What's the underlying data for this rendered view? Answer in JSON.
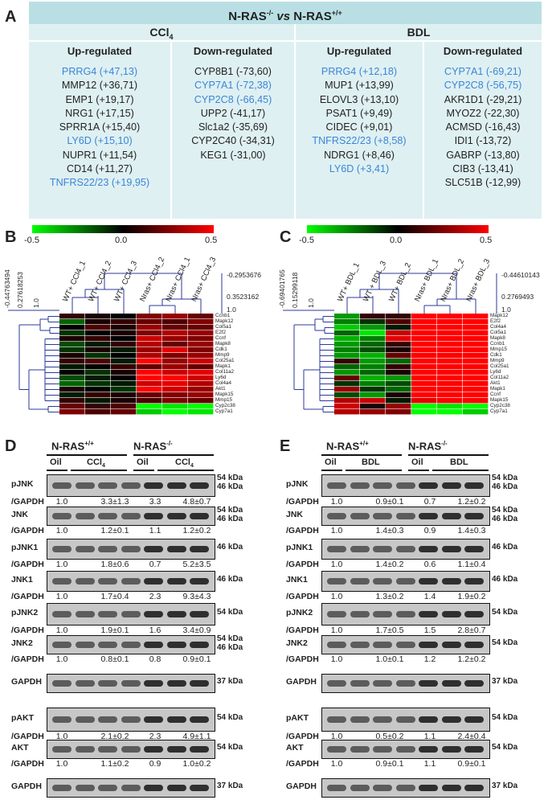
{
  "panels": {
    "A": "A",
    "B": "B",
    "C": "C",
    "D": "D",
    "E": "E"
  },
  "tableA": {
    "header_main": "N-RAS",
    "header_sup1": "-/-",
    "header_vs": " vs ",
    "header_main2": "N-RAS",
    "header_sup2": "+/+",
    "groups": [
      {
        "name_main": "CCl",
        "name_sub": "4",
        "up_title": "Up-regulated",
        "down_title": "Down-regulated",
        "up": [
          {
            "text": "PRRG4 (+47,13)",
            "hl": true
          },
          {
            "text": "MMP12 (+36,71)",
            "hl": false
          },
          {
            "text": "EMP1 (+19,17)",
            "hl": false
          },
          {
            "text": "NRG1 (+17,15)",
            "hl": false
          },
          {
            "text": "SPRR1A (+15,40)",
            "hl": false
          },
          {
            "text": "LY6D (+15,10)",
            "hl": true
          },
          {
            "text": "NUPR1 (+11,54)",
            "hl": false
          },
          {
            "text": "CD14  (+11,27)",
            "hl": false
          },
          {
            "text": "TNFRS22/23 (+19,95)",
            "hl": true
          }
        ],
        "down": [
          {
            "text": "CYP8B1 (-73,60)",
            "hl": false
          },
          {
            "text": "CYP7A1 (-72,38)",
            "hl": true
          },
          {
            "text": "CYP2C8 (-66,45)",
            "hl": true
          },
          {
            "text": "UPP2 (-41,17)",
            "hl": false
          },
          {
            "text": "Slc1a2 (-35,69)",
            "hl": false
          },
          {
            "text": "CYP2C40 (-34,31)",
            "hl": false
          },
          {
            "text": "KEG1 (-31,00)",
            "hl": false
          }
        ]
      },
      {
        "name_main": "BDL",
        "name_sub": "",
        "up_title": "Up-regulated",
        "down_title": "Down-regulated",
        "up": [
          {
            "text": "PRRG4 (+12,18)",
            "hl": true
          },
          {
            "text": "MUP1 (+13,99)",
            "hl": false
          },
          {
            "text": "ELOVL3 (+13,10)",
            "hl": false
          },
          {
            "text": "PSAT1 (+9,49)",
            "hl": false
          },
          {
            "text": "CIDEC (+9,01)",
            "hl": false
          },
          {
            "text": "TNFRS22/23 (+8,58)",
            "hl": true
          },
          {
            "text": "NDRG1 (+8,46)",
            "hl": false
          },
          {
            "text": "LY6D (+3,41)",
            "hl": true
          }
        ],
        "down": [
          {
            "text": "CYP7A1 (-69,21)",
            "hl": true
          },
          {
            "text": "CYP2C8 (-56,75)",
            "hl": true
          },
          {
            "text": "AKR1D1 (-29,21)",
            "hl": false
          },
          {
            "text": "MYOZ2 (-22,30)",
            "hl": false
          },
          {
            "text": "ACMSD (-16,43)",
            "hl": false
          },
          {
            "text": "IDI1 (-13,72)",
            "hl": false
          },
          {
            "text": "GABRP (-13,80)",
            "hl": false
          },
          {
            "text": "CIB3 (-13,41)",
            "hl": false
          },
          {
            "text": "SLC51B (-12,99)",
            "hl": false
          }
        ]
      }
    ]
  },
  "heatmapB": {
    "scale_min": "-0.5",
    "scale_mid": "0.0",
    "scale_max": "0.5",
    "samples": [
      "WT+ CCl4_1",
      "WT+ CCl4_2",
      "WT+ CCl4_3",
      "Nras+ CCl4_2",
      "Nras+ CCl4_1",
      "Nras+ CCl4_3"
    ],
    "genes": [
      "Ccnb1",
      "Mapk12",
      "Col5a1",
      "E2f2",
      "Ccnf",
      "Mapk8",
      "Cdk1",
      "Mmp9",
      "Col25a1",
      "Mapk1",
      "Col11a2",
      "Ly6d",
      "Col4a4",
      "Akt1",
      "Mapk15",
      "Mmp15",
      "Cyp2c38",
      "Cyp7a1"
    ],
    "tree_top": "-0.2953676",
    "tree_mid": "0.3523162",
    "tree_bot": "1.0",
    "tree_left": "-0.44763494",
    "tree_left2": "0.27618253",
    "tree_left3": "1.0",
    "values": [
      [
        0.1,
        0.05,
        0.0,
        0.25,
        0.3,
        0.2
      ],
      [
        -0.2,
        0.05,
        0.1,
        0.2,
        0.15,
        0.25
      ],
      [
        0.0,
        0.15,
        0.05,
        0.3,
        0.2,
        0.2
      ],
      [
        -0.1,
        0.0,
        0.05,
        0.25,
        0.35,
        0.3
      ],
      [
        0.05,
        0.1,
        0.0,
        0.4,
        0.3,
        0.25
      ],
      [
        -0.15,
        -0.05,
        0.1,
        0.35,
        0.2,
        0.3
      ],
      [
        -0.1,
        0.05,
        -0.05,
        0.3,
        0.45,
        0.25
      ],
      [
        0.05,
        -0.1,
        0.0,
        0.35,
        0.25,
        0.3
      ],
      [
        0.1,
        0.15,
        -0.05,
        0.5,
        0.3,
        0.4
      ],
      [
        -0.05,
        0.0,
        0.1,
        0.2,
        0.3,
        0.2
      ],
      [
        0.0,
        -0.1,
        0.05,
        0.5,
        0.4,
        0.45
      ],
      [
        -0.15,
        -0.05,
        0.0,
        0.5,
        0.5,
        0.4
      ],
      [
        -0.2,
        -0.1,
        -0.05,
        0.4,
        0.45,
        0.35
      ],
      [
        0.05,
        0.0,
        -0.1,
        0.5,
        0.4,
        0.3
      ],
      [
        -0.05,
        0.1,
        0.05,
        0.2,
        0.25,
        0.3
      ],
      [
        0.1,
        -0.05,
        0.05,
        0.15,
        0.25,
        0.2
      ],
      [
        0.2,
        0.1,
        0.15,
        -0.5,
        -0.45,
        -0.5
      ],
      [
        0.25,
        0.15,
        0.2,
        -0.4,
        -0.5,
        -0.45
      ]
    ]
  },
  "heatmapC": {
    "scale_min": "-0.5",
    "scale_mid": "0.0",
    "scale_max": "0.5",
    "samples": [
      "WT+ BDL_1",
      "WT + BDL_3",
      "WT+ BDL_2",
      "Nras+ BDL_1",
      "Nras+ BDL_2",
      "Nras+ BDL_3"
    ],
    "genes": [
      "Mapk12",
      "E2f2",
      "Col4a4",
      "Col5a1",
      "Mapk8",
      "Ccnb1",
      "Mmp15",
      "Cdk1",
      "Mmp9",
      "Col25a1",
      "Ly6d",
      "Col11a2",
      "Akt1",
      "Mapk1",
      "Ccnf",
      "Mapk15",
      "Cyp2c38",
      "Cyp7a1"
    ],
    "tree_top": "-0.44610143",
    "tree_mid": "0.2769493",
    "tree_bot": "1.0",
    "tree_left": "-0.69401765",
    "tree_left2": "0.15299118",
    "tree_left3": "1.0",
    "values": [
      [
        -0.3,
        0.1,
        0.1,
        0.5,
        0.5,
        0.5
      ],
      [
        -0.25,
        -0.1,
        0.15,
        0.5,
        0.5,
        0.5
      ],
      [
        -0.4,
        -0.3,
        -0.05,
        0.5,
        0.5,
        0.5
      ],
      [
        -0.2,
        -0.45,
        0.4,
        0.5,
        0.5,
        0.5
      ],
      [
        -0.35,
        -0.25,
        0.45,
        0.5,
        0.5,
        0.5
      ],
      [
        -0.3,
        -0.2,
        0.1,
        0.5,
        0.5,
        0.5
      ],
      [
        -0.25,
        -0.15,
        0.05,
        0.5,
        0.5,
        0.5
      ],
      [
        -0.3,
        -0.35,
        0.2,
        0.5,
        0.5,
        0.5
      ],
      [
        0.1,
        -0.3,
        -0.2,
        0.5,
        0.5,
        0.5
      ],
      [
        -0.2,
        -0.25,
        0.1,
        0.5,
        0.5,
        0.5
      ],
      [
        -0.3,
        -0.2,
        0.05,
        0.5,
        0.5,
        0.5
      ],
      [
        0.2,
        -0.35,
        -0.3,
        0.5,
        0.5,
        0.5
      ],
      [
        -0.1,
        -0.25,
        -0.15,
        0.5,
        0.5,
        0.5
      ],
      [
        0.3,
        -0.1,
        -0.2,
        0.5,
        0.5,
        0.5
      ],
      [
        -0.15,
        -0.3,
        0.05,
        0.5,
        0.5,
        0.5
      ],
      [
        0.35,
        0.4,
        -0.05,
        0.45,
        0.5,
        0.5
      ],
      [
        0.4,
        0.05,
        0.3,
        -0.5,
        -0.45,
        -0.5
      ],
      [
        0.35,
        0.3,
        0.25,
        -0.5,
        -0.5,
        -0.4
      ]
    ]
  },
  "blotD": {
    "cond_left": "N-RAS",
    "cond_left_sup": "+/+",
    "cond_right": "N-RAS",
    "cond_right_sup": "-/-",
    "oil": "Oil",
    "treat": "CCl",
    "treat_sub": "4",
    "rows": [
      {
        "name": "pJNK",
        "kda": [
          "54 kDa",
          "46 kDa"
        ],
        "quant": [
          "1.0",
          "3.3±1.3",
          "3.3",
          "4.8±0.7"
        ]
      },
      {
        "name": "JNK",
        "kda": [
          "54 kDa",
          "46 kDa"
        ],
        "quant": [
          "1.0",
          "1.2±0.1",
          "1.1",
          "1.2±0.2"
        ]
      },
      {
        "name": "pJNK1",
        "kda": [
          "46 kDa"
        ],
        "quant": [
          "1.0",
          "1.8±0.6",
          "0.7",
          "5.2±3.5"
        ]
      },
      {
        "name": "JNK1",
        "kda": [
          "46 kDa"
        ],
        "quant": [
          "1.0",
          "1.7±0.4",
          "2.3",
          "9.3±4.3"
        ]
      },
      {
        "name": "pJNK2",
        "kda": [
          "54 kDa"
        ],
        "quant": [
          "1.0",
          "1.9±0.1",
          "1.6",
          "3.4±0.9"
        ]
      },
      {
        "name": "JNK2",
        "kda": [
          "54 kDa",
          "46 kDa"
        ],
        "quant": [
          "1.0",
          "0.8±0.1",
          "0.8",
          "0.9±0.1"
        ]
      },
      {
        "name": "GAPDH",
        "kda": [
          "37 kDa"
        ],
        "quant": []
      },
      {
        "name": "pAKT",
        "kda": [
          "54 kDa"
        ],
        "quant": [
          "1.0",
          "2.1±0.2",
          "2.3",
          "4.9±1.1"
        ]
      },
      {
        "name": "AKT",
        "kda": [
          "54 kDa"
        ],
        "quant": [
          "1.0",
          "1.1±0.2",
          "0.9",
          "1.0±0.2"
        ]
      },
      {
        "name": "GAPDH",
        "kda": [
          "37 kDa"
        ],
        "quant": []
      }
    ],
    "gapdh_label": "/GAPDH"
  },
  "blotE": {
    "cond_left": "N-RAS",
    "cond_left_sup": "+/+",
    "cond_right": "N-RAS",
    "cond_right_sup": "-/-",
    "oil": "Oil",
    "treat": "BDL",
    "treat_sub": "",
    "rows": [
      {
        "name": "pJNK",
        "kda": [
          "54 kDa",
          "46 kDa"
        ],
        "quant": [
          "1.0",
          "0.9±0.1",
          "0.7",
          "1.2±0.2"
        ]
      },
      {
        "name": "JNK",
        "kda": [
          "54 kDa",
          "46 kDa"
        ],
        "quant": [
          "1.0",
          "1.4±0.3",
          "0.9",
          "1.4±0.3"
        ]
      },
      {
        "name": "pJNK1",
        "kda": [
          "46 kDa"
        ],
        "quant": [
          "1.0",
          "1.4±0.2",
          "0.6",
          "1.1±0.4"
        ]
      },
      {
        "name": "JNK1",
        "kda": [
          "46 kDa"
        ],
        "quant": [
          "1.0",
          "1.3±0.2",
          "1.4",
          "1.9±0.2"
        ]
      },
      {
        "name": "pJNK2",
        "kda": [
          "54 kDa"
        ],
        "quant": [
          "1.0",
          "1.7±0.5",
          "1.5",
          "2.8±0.7"
        ]
      },
      {
        "name": "JNK2",
        "kda": [
          "54 kDa"
        ],
        "quant": [
          "1.0",
          "1.0±0.1",
          "1.2",
          "1.2±0.2"
        ]
      },
      {
        "name": "GAPDH",
        "kda": [
          "37 kDa"
        ],
        "quant": []
      },
      {
        "name": "pAKT",
        "kda": [
          "54 kDa"
        ],
        "quant": [
          "1.0",
          "0.5±0.2",
          "1.1",
          "2.4±0.4"
        ]
      },
      {
        "name": "AKT",
        "kda": [
          "54 kDa"
        ],
        "quant": [
          "1.0",
          "0.9±0.1",
          "1.1",
          "0.9±0.1"
        ]
      },
      {
        "name": "GAPDH",
        "kda": [
          "37 kDa"
        ],
        "quant": []
      }
    ],
    "gapdh_label": "/GAPDH"
  },
  "colors": {
    "table_bg": "#dff0f2",
    "table_header": "#b9dfe4",
    "highlight": "#3a86d8",
    "dendrogram": "#2b3a9a"
  }
}
